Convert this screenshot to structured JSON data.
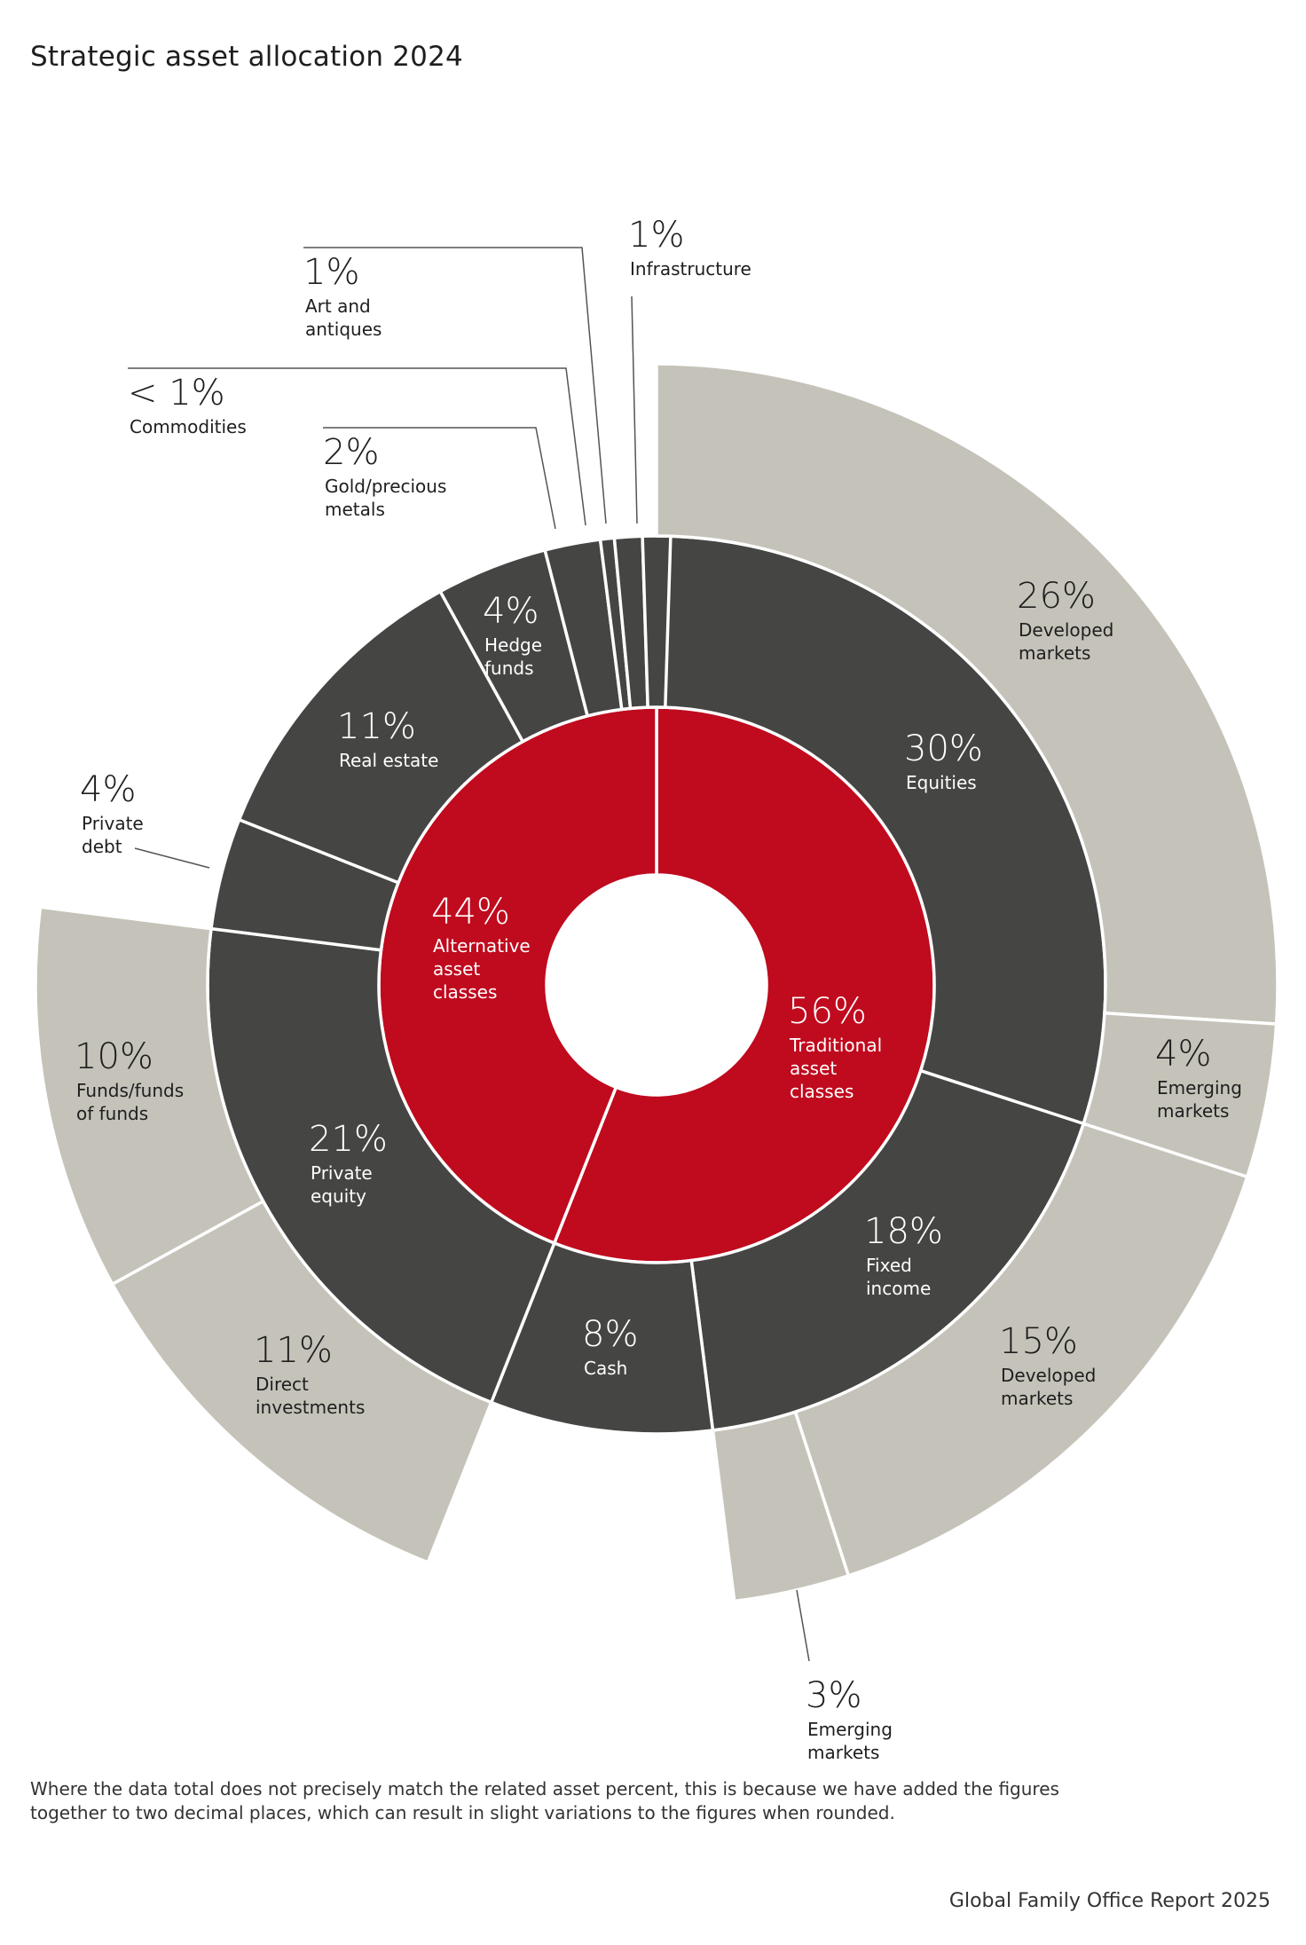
{
  "title": "Strategic asset allocation 2024",
  "footnote": "Where the data total does not precisely match the related asset percent, this is because we have added the figures together to two decimal places, which can result in slight variations to the figures when rounded.",
  "source": "Global Family Office Report 2025",
  "colors": {
    "inner": "#c00a1e",
    "middle": "#454544",
    "outer": "#c5c3b9",
    "text_dark": "#1e1e1e",
    "text_light": "#ffffff",
    "separator": "#ffffff",
    "leader": "#555555"
  },
  "chart_data": {
    "type": "sunburst",
    "title": "Strategic asset allocation 2024",
    "rings": {
      "inner": [
        {
          "name": "Traditional asset classes",
          "value_label": "56%",
          "value": 56
        },
        {
          "name": "Alternative asset classes",
          "value_label": "44%",
          "value": 44
        }
      ],
      "middle": [
        {
          "name": "Equities",
          "value_label": "30%",
          "value": 30,
          "parent": "Traditional asset classes"
        },
        {
          "name": "Fixed income",
          "value_label": "18%",
          "value": 18,
          "parent": "Traditional asset classes"
        },
        {
          "name": "Cash",
          "value_label": "8%",
          "value": 8,
          "parent": "Traditional asset classes"
        },
        {
          "name": "Private equity",
          "value_label": "21%",
          "value": 21,
          "parent": "Alternative asset classes"
        },
        {
          "name": "Private debt",
          "value_label": "4%",
          "value": 4,
          "parent": "Alternative asset classes"
        },
        {
          "name": "Real estate",
          "value_label": "11%",
          "value": 11,
          "parent": "Alternative asset classes"
        },
        {
          "name": "Hedge funds",
          "value_label": "4%",
          "value": 4,
          "parent": "Alternative asset classes"
        },
        {
          "name": "Gold/precious metals",
          "value_label": "2%",
          "value": 2,
          "parent": "Alternative asset classes"
        },
        {
          "name": "Commodities",
          "value_label": "<1%",
          "value": 0.5,
          "parent": "Alternative asset classes"
        },
        {
          "name": "Art and antiques",
          "value_label": "1%",
          "value": 1,
          "parent": "Alternative asset classes"
        },
        {
          "name": "Infrastructure",
          "value_label": "1%",
          "value": 1,
          "parent": "Alternative asset classes"
        }
      ],
      "outer": [
        {
          "name": "Developed markets",
          "value_label": "26%",
          "value": 26,
          "parent": "Equities"
        },
        {
          "name": "Emerging markets",
          "value_label": "4%",
          "value": 4,
          "parent": "Equities"
        },
        {
          "name": "Developed markets",
          "value_label": "15%",
          "value": 15,
          "parent": "Fixed income"
        },
        {
          "name": "Emerging markets",
          "value_label": "3%",
          "value": 3,
          "parent": "Fixed income"
        },
        {
          "name": "Direct investments",
          "value_label": "11%",
          "value": 11,
          "parent": "Private equity"
        },
        {
          "name": "Funds/funds of funds",
          "value_label": "10%",
          "value": 10,
          "parent": "Private equity"
        }
      ]
    },
    "labels": {
      "traditional": {
        "pct": "56%",
        "lines": [
          "Traditional",
          "asset",
          "classes"
        ]
      },
      "alternative": {
        "pct": "44%",
        "lines": [
          "Alternative",
          "asset",
          "classes"
        ]
      },
      "equities": {
        "pct": "30%",
        "lines": [
          "Equities"
        ]
      },
      "fixed_income": {
        "pct": "18%",
        "lines": [
          "Fixed",
          "income"
        ]
      },
      "cash": {
        "pct": "8%",
        "lines": [
          "Cash"
        ]
      },
      "private_equity": {
        "pct": "21%",
        "lines": [
          "Private",
          "equity"
        ]
      },
      "real_estate": {
        "pct": "11%",
        "lines": [
          "Real estate"
        ]
      },
      "hedge_funds": {
        "pct": "4%",
        "lines": [
          "Hedge",
          "funds"
        ]
      },
      "private_debt": {
        "pct": "4%",
        "lines": [
          "Private",
          "debt"
        ]
      },
      "gold": {
        "pct": "2%",
        "lines": [
          "Gold/precious",
          "metals"
        ]
      },
      "commodities": {
        "pct": "< 1%",
        "lines": [
          "Commodities"
        ]
      },
      "art": {
        "pct": "1%",
        "lines": [
          "Art and",
          "antiques"
        ]
      },
      "infrastructure": {
        "pct": "1%",
        "lines": [
          "Infrastructure"
        ]
      },
      "eq_developed": {
        "pct": "26%",
        "lines": [
          "Developed",
          "markets"
        ]
      },
      "eq_emerging": {
        "pct": "4%",
        "lines": [
          "Emerging",
          "markets"
        ]
      },
      "fi_developed": {
        "pct": "15%",
        "lines": [
          "Developed",
          "markets"
        ]
      },
      "fi_emerging": {
        "pct": "3%",
        "lines": [
          "Emerging",
          "markets"
        ]
      },
      "pe_direct": {
        "pct": "11%",
        "lines": [
          "Direct",
          "investments"
        ]
      },
      "pe_funds": {
        "pct": "10%",
        "lines": [
          "Funds/funds",
          "of funds"
        ]
      }
    }
  }
}
